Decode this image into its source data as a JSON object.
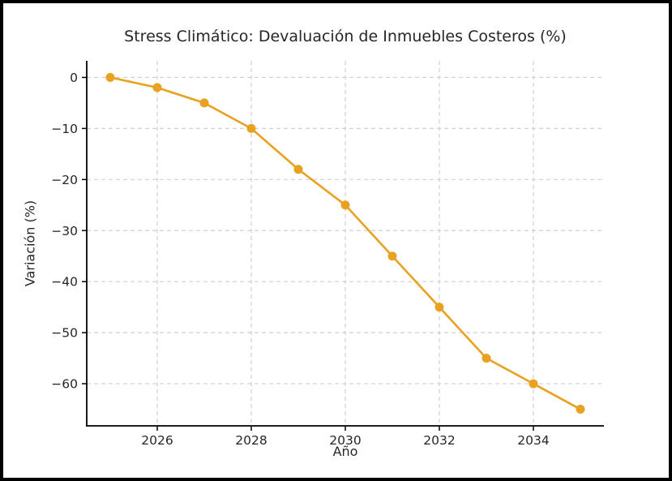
{
  "figure": {
    "kind": "matplotlib-line-chart"
  },
  "chart_data": {
    "type": "line",
    "title": "Stress Climático: Devaluación de Inmuebles Costeros (%)",
    "xlabel": "Año",
    "ylabel": "Variación (%)",
    "x": [
      2025,
      2026,
      2027,
      2028,
      2029,
      2030,
      2031,
      2032,
      2033,
      2034,
      2035
    ],
    "y": [
      0,
      -2,
      -5,
      -10,
      -18,
      -25,
      -35,
      -45,
      -55,
      -60,
      -65
    ],
    "xticks": [
      2026,
      2028,
      2030,
      2032,
      2034
    ],
    "yticks": [
      0,
      -10,
      -20,
      -30,
      -40,
      -50,
      -60
    ],
    "xtick_labels": [
      "2026",
      "2028",
      "2030",
      "2032",
      "2034"
    ],
    "ytick_labels": [
      "0",
      "−10",
      "−20",
      "−30",
      "−40",
      "−50",
      "−60"
    ],
    "xlim": [
      2024.5,
      2035.5
    ],
    "ylim": [
      -68.25,
      3.25
    ],
    "grid": "dashed",
    "legend_position": "none",
    "colors": {
      "line": "#E8A120",
      "marker": "#E8A120",
      "grid": "#cfcfcf",
      "spine": "#000000",
      "text": "#262626"
    }
  }
}
